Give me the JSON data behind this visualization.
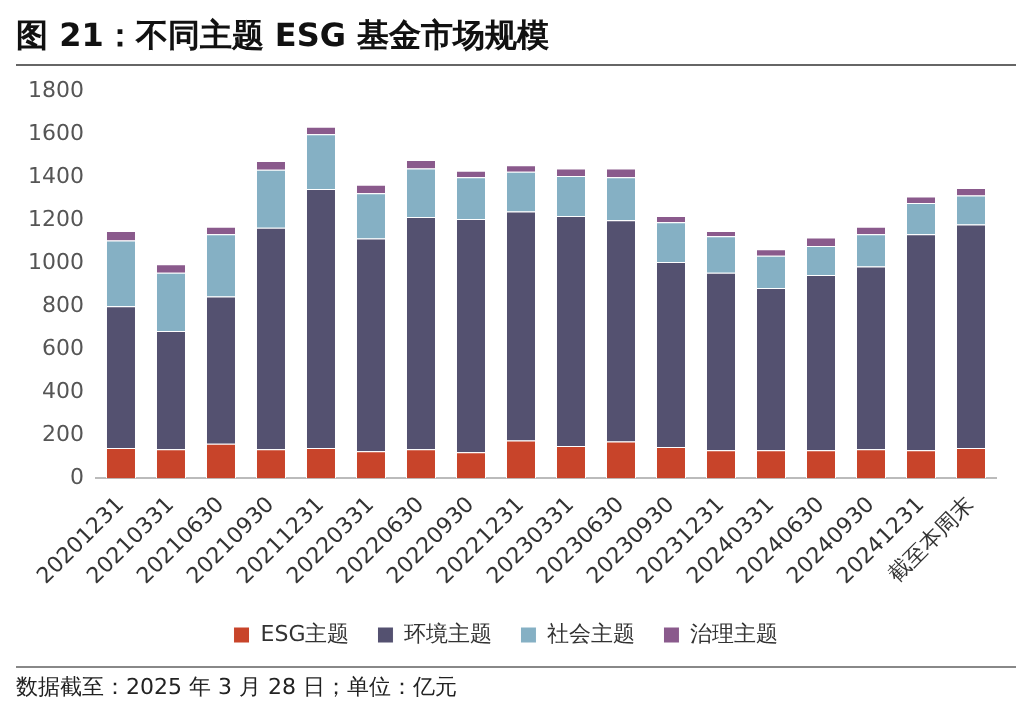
{
  "chart_data": {
    "type": "bar",
    "title": "图 21：不同主题 ESG 基金市场规模",
    "stacked": true,
    "categories": [
      "20201231",
      "20210331",
      "20210630",
      "20210930",
      "20211231",
      "20220331",
      "20220630",
      "20220930",
      "20221231",
      "20230331",
      "20230630",
      "20230930",
      "20231231",
      "20240331",
      "20240630",
      "20240930",
      "20241231",
      "截至本周末"
    ],
    "series": [
      {
        "name": "ESG主题",
        "color": "#c8442a",
        "values": [
          140,
          135,
          160,
          135,
          140,
          125,
          135,
          120,
          175,
          150,
          170,
          145,
          130,
          130,
          130,
          135,
          130,
          140
        ]
      },
      {
        "name": "环境主题",
        "color": "#545170",
        "values": [
          660,
          550,
          685,
          1030,
          1205,
          990,
          1080,
          1085,
          1065,
          1070,
          1030,
          860,
          825,
          755,
          815,
          850,
          1005,
          1040
        ]
      },
      {
        "name": "社会主题",
        "color": "#85b0c4",
        "values": [
          305,
          270,
          290,
          270,
          255,
          210,
          225,
          195,
          185,
          185,
          200,
          185,
          170,
          150,
          135,
          150,
          145,
          135
        ]
      },
      {
        "name": "治理主题",
        "color": "#8a5a8c",
        "values": [
          45,
          40,
          35,
          40,
          35,
          40,
          40,
          30,
          30,
          35,
          40,
          30,
          25,
          30,
          40,
          35,
          30,
          35
        ]
      }
    ],
    "ylim": [
      0,
      1800
    ],
    "yticks": [
      0,
      200,
      400,
      600,
      800,
      1000,
      1200,
      1400,
      1600,
      1800
    ],
    "grid": false,
    "legend": "bottom",
    "annotations": [
      "数据截至：2025 年 3 月 28 日；单位：亿元"
    ]
  }
}
